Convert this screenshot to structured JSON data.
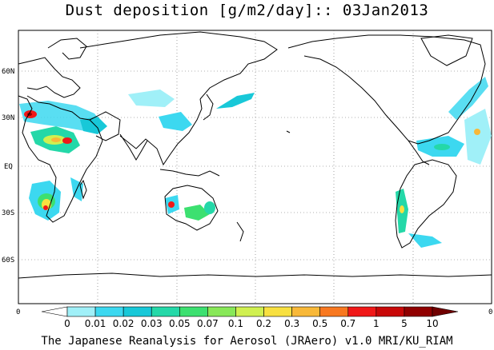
{
  "title": "Dust deposition [g/m2/day]:: 03Jan2013",
  "footer": "The Japanese Reanalysis for Aerosol (JRAero) v1.0 MRI/KU_RIAM",
  "lat_labels": [
    "60N",
    "30N",
    "EQ",
    "30S",
    "60S"
  ],
  "axis_corner_labels": [
    "0",
    "0"
  ],
  "colorbar": {
    "labels": [
      "0",
      "0.01",
      "0.02",
      "0.03",
      "0.05",
      "0.07",
      "0.1",
      "0.2",
      "0.3",
      "0.5",
      "0.7",
      "1",
      "5",
      "10"
    ],
    "colors": [
      "#ffffff",
      "#a0f0f8",
      "#3cd8f0",
      "#18c8d8",
      "#24d8a8",
      "#3ce070",
      "#88e858",
      "#d0f050",
      "#f8e040",
      "#f8b838",
      "#f87820",
      "#f01818",
      "#c80808",
      "#900000",
      "#700000"
    ]
  }
}
